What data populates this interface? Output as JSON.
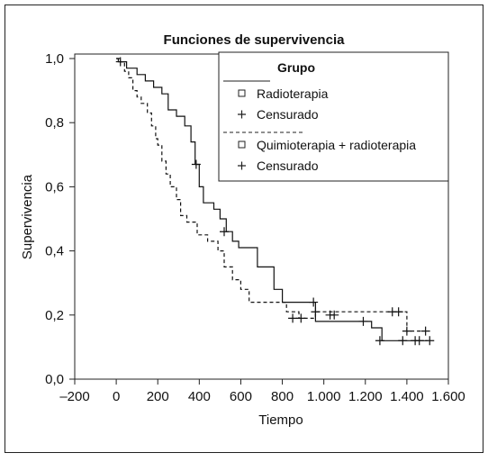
{
  "chart_data": {
    "type": "line",
    "step": true,
    "title": "Funciones de supervivencia",
    "xlabel": "Tiempo",
    "ylabel": "Supervivencia",
    "xlim": [
      -200,
      1600
    ],
    "ylim": [
      0,
      1.0
    ],
    "x_ticks": [
      {
        "value": -200,
        "label": "–200"
      },
      {
        "value": 0,
        "label": "0"
      },
      {
        "value": 200,
        "label": "200"
      },
      {
        "value": 400,
        "label": "400"
      },
      {
        "value": 600,
        "label": "600"
      },
      {
        "value": 800,
        "label": "800"
      },
      {
        "value": 1000,
        "label": "1.000"
      },
      {
        "value": 1200,
        "label": "1.200"
      },
      {
        "value": 1400,
        "label": "1.400"
      },
      {
        "value": 1600,
        "label": "1.600"
      }
    ],
    "y_ticks": [
      {
        "value": 0.0,
        "label": "0,0"
      },
      {
        "value": 0.2,
        "label": "0,2"
      },
      {
        "value": 0.4,
        "label": "0,4"
      },
      {
        "value": 0.6,
        "label": "0,6"
      },
      {
        "value": 0.8,
        "label": "0,8"
      },
      {
        "value": 1.0,
        "label": "1,0"
      }
    ],
    "grid": false,
    "legend_position": "top-right",
    "legend": {
      "title": "Grupo",
      "entries": [
        {
          "label": "Radioterapia",
          "marker": "square",
          "line": "solid"
        },
        {
          "label": "Censurado",
          "marker": "plus"
        },
        {
          "label": "Quimioterapia + radioterapia",
          "marker": "square",
          "line": "dashed"
        },
        {
          "label": "Censurado",
          "marker": "plus"
        }
      ]
    },
    "series": [
      {
        "name": "Radioterapia",
        "line": "solid",
        "points": [
          [
            0,
            1.0
          ],
          [
            10,
            0.99
          ],
          [
            50,
            0.97
          ],
          [
            100,
            0.95
          ],
          [
            140,
            0.93
          ],
          [
            180,
            0.91
          ],
          [
            220,
            0.89
          ],
          [
            250,
            0.84
          ],
          [
            290,
            0.82
          ],
          [
            330,
            0.79
          ],
          [
            360,
            0.74
          ],
          [
            380,
            0.67
          ],
          [
            400,
            0.6
          ],
          [
            420,
            0.55
          ],
          [
            470,
            0.53
          ],
          [
            500,
            0.5
          ],
          [
            530,
            0.46
          ],
          [
            560,
            0.43
          ],
          [
            590,
            0.41
          ],
          [
            680,
            0.35
          ],
          [
            760,
            0.28
          ],
          [
            800,
            0.24
          ],
          [
            960,
            0.18
          ],
          [
            1230,
            0.16
          ],
          [
            1280,
            0.12
          ],
          [
            1500,
            0.12
          ]
        ],
        "censored": [
          [
            20,
            0.99
          ],
          [
            385,
            0.67
          ],
          [
            520,
            0.46
          ],
          [
            950,
            0.24
          ],
          [
            1190,
            0.18
          ],
          [
            1270,
            0.12
          ],
          [
            1380,
            0.12
          ],
          [
            1440,
            0.12
          ],
          [
            1460,
            0.12
          ],
          [
            1510,
            0.12
          ]
        ]
      },
      {
        "name": "Quimioterapia + radioterapia",
        "line": "dashed",
        "points": [
          [
            0,
            1.0
          ],
          [
            20,
            0.99
          ],
          [
            40,
            0.96
          ],
          [
            60,
            0.94
          ],
          [
            80,
            0.9
          ],
          [
            100,
            0.88
          ],
          [
            120,
            0.86
          ],
          [
            150,
            0.83
          ],
          [
            170,
            0.79
          ],
          [
            190,
            0.75
          ],
          [
            200,
            0.73
          ],
          [
            220,
            0.68
          ],
          [
            240,
            0.64
          ],
          [
            260,
            0.6
          ],
          [
            290,
            0.56
          ],
          [
            310,
            0.51
          ],
          [
            340,
            0.49
          ],
          [
            390,
            0.45
          ],
          [
            440,
            0.43
          ],
          [
            490,
            0.4
          ],
          [
            520,
            0.35
          ],
          [
            560,
            0.31
          ],
          [
            600,
            0.28
          ],
          [
            640,
            0.24
          ],
          [
            820,
            0.21
          ],
          [
            880,
            0.19
          ],
          [
            900,
            0.19
          ],
          [
            960,
            0.21
          ],
          [
            1370,
            0.21
          ],
          [
            1400,
            0.15
          ],
          [
            1470,
            0.15
          ]
        ],
        "censored": [
          [
            850,
            0.19
          ],
          [
            890,
            0.19
          ],
          [
            960,
            0.21
          ],
          [
            1030,
            0.2
          ],
          [
            1050,
            0.2
          ],
          [
            1330,
            0.21
          ],
          [
            1360,
            0.21
          ],
          [
            1400,
            0.15
          ],
          [
            1490,
            0.15
          ]
        ]
      }
    ]
  }
}
